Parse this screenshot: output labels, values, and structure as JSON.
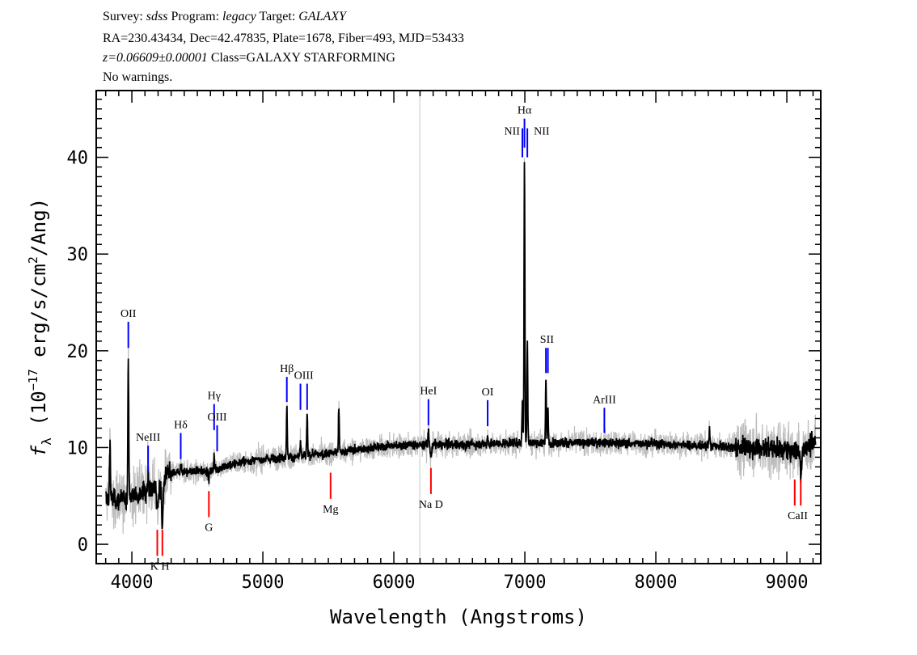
{
  "header": {
    "survey_label": "Survey:",
    "survey": "sdss",
    "program_label": "Program:",
    "program": "legacy",
    "target_label": "Target:",
    "target": "GALAXY",
    "line2": "RA=230.43434, Dec=42.47835, Plate=1678, Fiber=493, MJD=53433",
    "redshift": "z=0.06609±0.00001",
    "class": "Class=GALAXY STARFORMING",
    "warnings": "No warnings."
  },
  "chart_data": {
    "type": "line",
    "xlabel": "Wavelength (Angstroms)",
    "ylabel": "f_λ (10^-17 erg/s/cm^2/Ang)",
    "ylabel_parts": {
      "f": "f",
      "sub": "λ",
      "pre": " (10",
      "exp": "−17",
      "mid": " erg/s/cm",
      "exp2": "2",
      "post": "/Ang)"
    },
    "xlim": [
      3728,
      9259
    ],
    "ylim": [
      -2.0,
      46.9
    ],
    "xticks": [
      4000,
      5000,
      6000,
      7000,
      8000,
      9000
    ],
    "yticks": [
      0,
      10,
      20,
      30,
      40
    ],
    "grid": false,
    "colors": {
      "flux": "#000000",
      "error": "#bdbdbd",
      "emission": "#0000ff",
      "absorption": "#ff0000",
      "sky_marker": "#c8c8c8"
    },
    "sky_marker_wavelength": 6198,
    "continuum": {
      "wavelength": [
        3800,
        3900,
        4000,
        4100,
        4180,
        4230,
        4260,
        4400,
        4600,
        4800,
        5000,
        5200,
        5500,
        5800,
        6000,
        6300,
        6600,
        7000,
        7500,
        8000,
        8500,
        8800,
        9000,
        9100,
        9200
      ],
      "flux": [
        4.8,
        4.5,
        5.0,
        5.5,
        5.8,
        5.5,
        7.2,
        7.5,
        7.6,
        8.4,
        8.8,
        9.0,
        9.4,
        9.9,
        10.2,
        10.3,
        10.3,
        10.5,
        10.5,
        10.4,
        10.1,
        10.0,
        9.8,
        9.6,
        10.5
      ]
    },
    "emission_features": [
      {
        "wavelength": 3833,
        "flux": 11.0
      },
      {
        "wavelength": 3973,
        "flux": 19.5
      },
      {
        "wavelength": 4124,
        "flux": 7.5
      },
      {
        "wavelength": 4373,
        "flux": 8.6
      },
      {
        "wavelength": 4628,
        "flux": 9.2
      },
      {
        "wavelength": 5183,
        "flux": 14.2
      },
      {
        "wavelength": 5287,
        "flux": 10.5
      },
      {
        "wavelength": 5338,
        "flux": 13.5
      },
      {
        "wavelength": 5580,
        "flux": 14.0
      },
      {
        "wavelength": 6264,
        "flux": 11.8
      },
      {
        "wavelength": 6716,
        "flux": 11.2
      },
      {
        "wavelength": 6981,
        "flux": 15.0
      },
      {
        "wavelength": 6997,
        "flux": 39.5
      },
      {
        "wavelength": 7019,
        "flux": 21.0
      },
      {
        "wavelength": 7161,
        "flux": 17.0
      },
      {
        "wavelength": 7176,
        "flux": 14.0
      },
      {
        "wavelength": 8410,
        "flux": 12.0
      }
    ],
    "absorption_features": [
      {
        "wavelength": 4194,
        "flux": 3.5
      },
      {
        "wavelength": 4233,
        "flux": 2.0
      },
      {
        "wavelength": 4588,
        "flux": 6.8
      },
      {
        "wavelength": 6283,
        "flux": 9.0
      },
      {
        "wavelength": 9107,
        "flux": 7.5
      }
    ],
    "line_markers": [
      {
        "label": "OII",
        "wavelengths": [
          3973
        ],
        "type": "emission",
        "y_range": [
          20.3,
          23.0
        ],
        "label_pos": "above"
      },
      {
        "label": "NeIII",
        "wavelengths": [
          4124
        ],
        "type": "emission",
        "y_range": [
          7.5,
          10.2
        ],
        "label_pos": "above"
      },
      {
        "label": "Hδ",
        "wavelengths": [
          4373
        ],
        "type": "emission",
        "y_range": [
          8.8,
          11.5
        ],
        "label_pos": "above"
      },
      {
        "label": "Hγ",
        "wavelengths": [
          4628
        ],
        "type": "emission",
        "y_range": [
          11.8,
          14.5
        ],
        "label_pos": "above"
      },
      {
        "label": "OIII",
        "wavelengths": [
          4651
        ],
        "type": "emission",
        "y_range": [
          9.6,
          12.3
        ],
        "label_pos": "above"
      },
      {
        "label": "Hβ",
        "wavelengths": [
          5183
        ],
        "type": "emission",
        "y_range": [
          14.7,
          17.3
        ],
        "label_pos": "above"
      },
      {
        "label": "OIII",
        "wavelengths": [
          5287,
          5338
        ],
        "type": "emission",
        "y_range": [
          13.9,
          16.6
        ],
        "label_pos": "above"
      },
      {
        "label": "HeI",
        "wavelengths": [
          6264
        ],
        "type": "emission",
        "y_range": [
          12.3,
          15.0
        ],
        "label_pos": "above"
      },
      {
        "label": "OI",
        "wavelengths": [
          6716
        ],
        "type": "emission",
        "y_range": [
          12.2,
          14.9
        ],
        "label_pos": "above"
      },
      {
        "label": "NII",
        "wavelengths": [
          6981
        ],
        "type": "emission",
        "y_range": [
          40.0,
          43.0
        ],
        "label_pos": "left"
      },
      {
        "label": "Hα",
        "wavelengths": [
          6997
        ],
        "type": "emission",
        "y_range": [
          41.0,
          44.0
        ],
        "label_pos": "above"
      },
      {
        "label": "NII",
        "wavelengths": [
          7019
        ],
        "type": "emission",
        "y_range": [
          40.0,
          43.0
        ],
        "label_pos": "right"
      },
      {
        "label": "SII",
        "wavelengths": [
          7161,
          7176
        ],
        "type": "emission",
        "y_range": [
          17.7,
          20.3
        ],
        "label_pos": "above"
      },
      {
        "label": "ArIII",
        "wavelengths": [
          7607
        ],
        "type": "emission",
        "y_range": [
          11.5,
          14.1
        ],
        "label_pos": "above"
      },
      {
        "label": "K H",
        "wavelengths": [
          4194,
          4233
        ],
        "type": "absorption",
        "y_range": [
          -1.2,
          1.5
        ],
        "label_pos": "below"
      },
      {
        "label": "G",
        "wavelengths": [
          4588
        ],
        "type": "absorption",
        "y_range": [
          2.8,
          5.5
        ],
        "label_pos": "below"
      },
      {
        "label": "Mg",
        "wavelengths": [
          5517
        ],
        "type": "absorption",
        "y_range": [
          4.7,
          7.4
        ],
        "label_pos": "below"
      },
      {
        "label": "Na  D",
        "wavelengths": [
          6283
        ],
        "type": "absorption",
        "y_range": [
          5.2,
          7.9
        ],
        "label_pos": "below"
      },
      {
        "label": "CaII",
        "wavelengths": [
          9060,
          9106
        ],
        "type": "absorption",
        "y_range": [
          4.0,
          6.7
        ],
        "label_pos": "below"
      }
    ]
  }
}
